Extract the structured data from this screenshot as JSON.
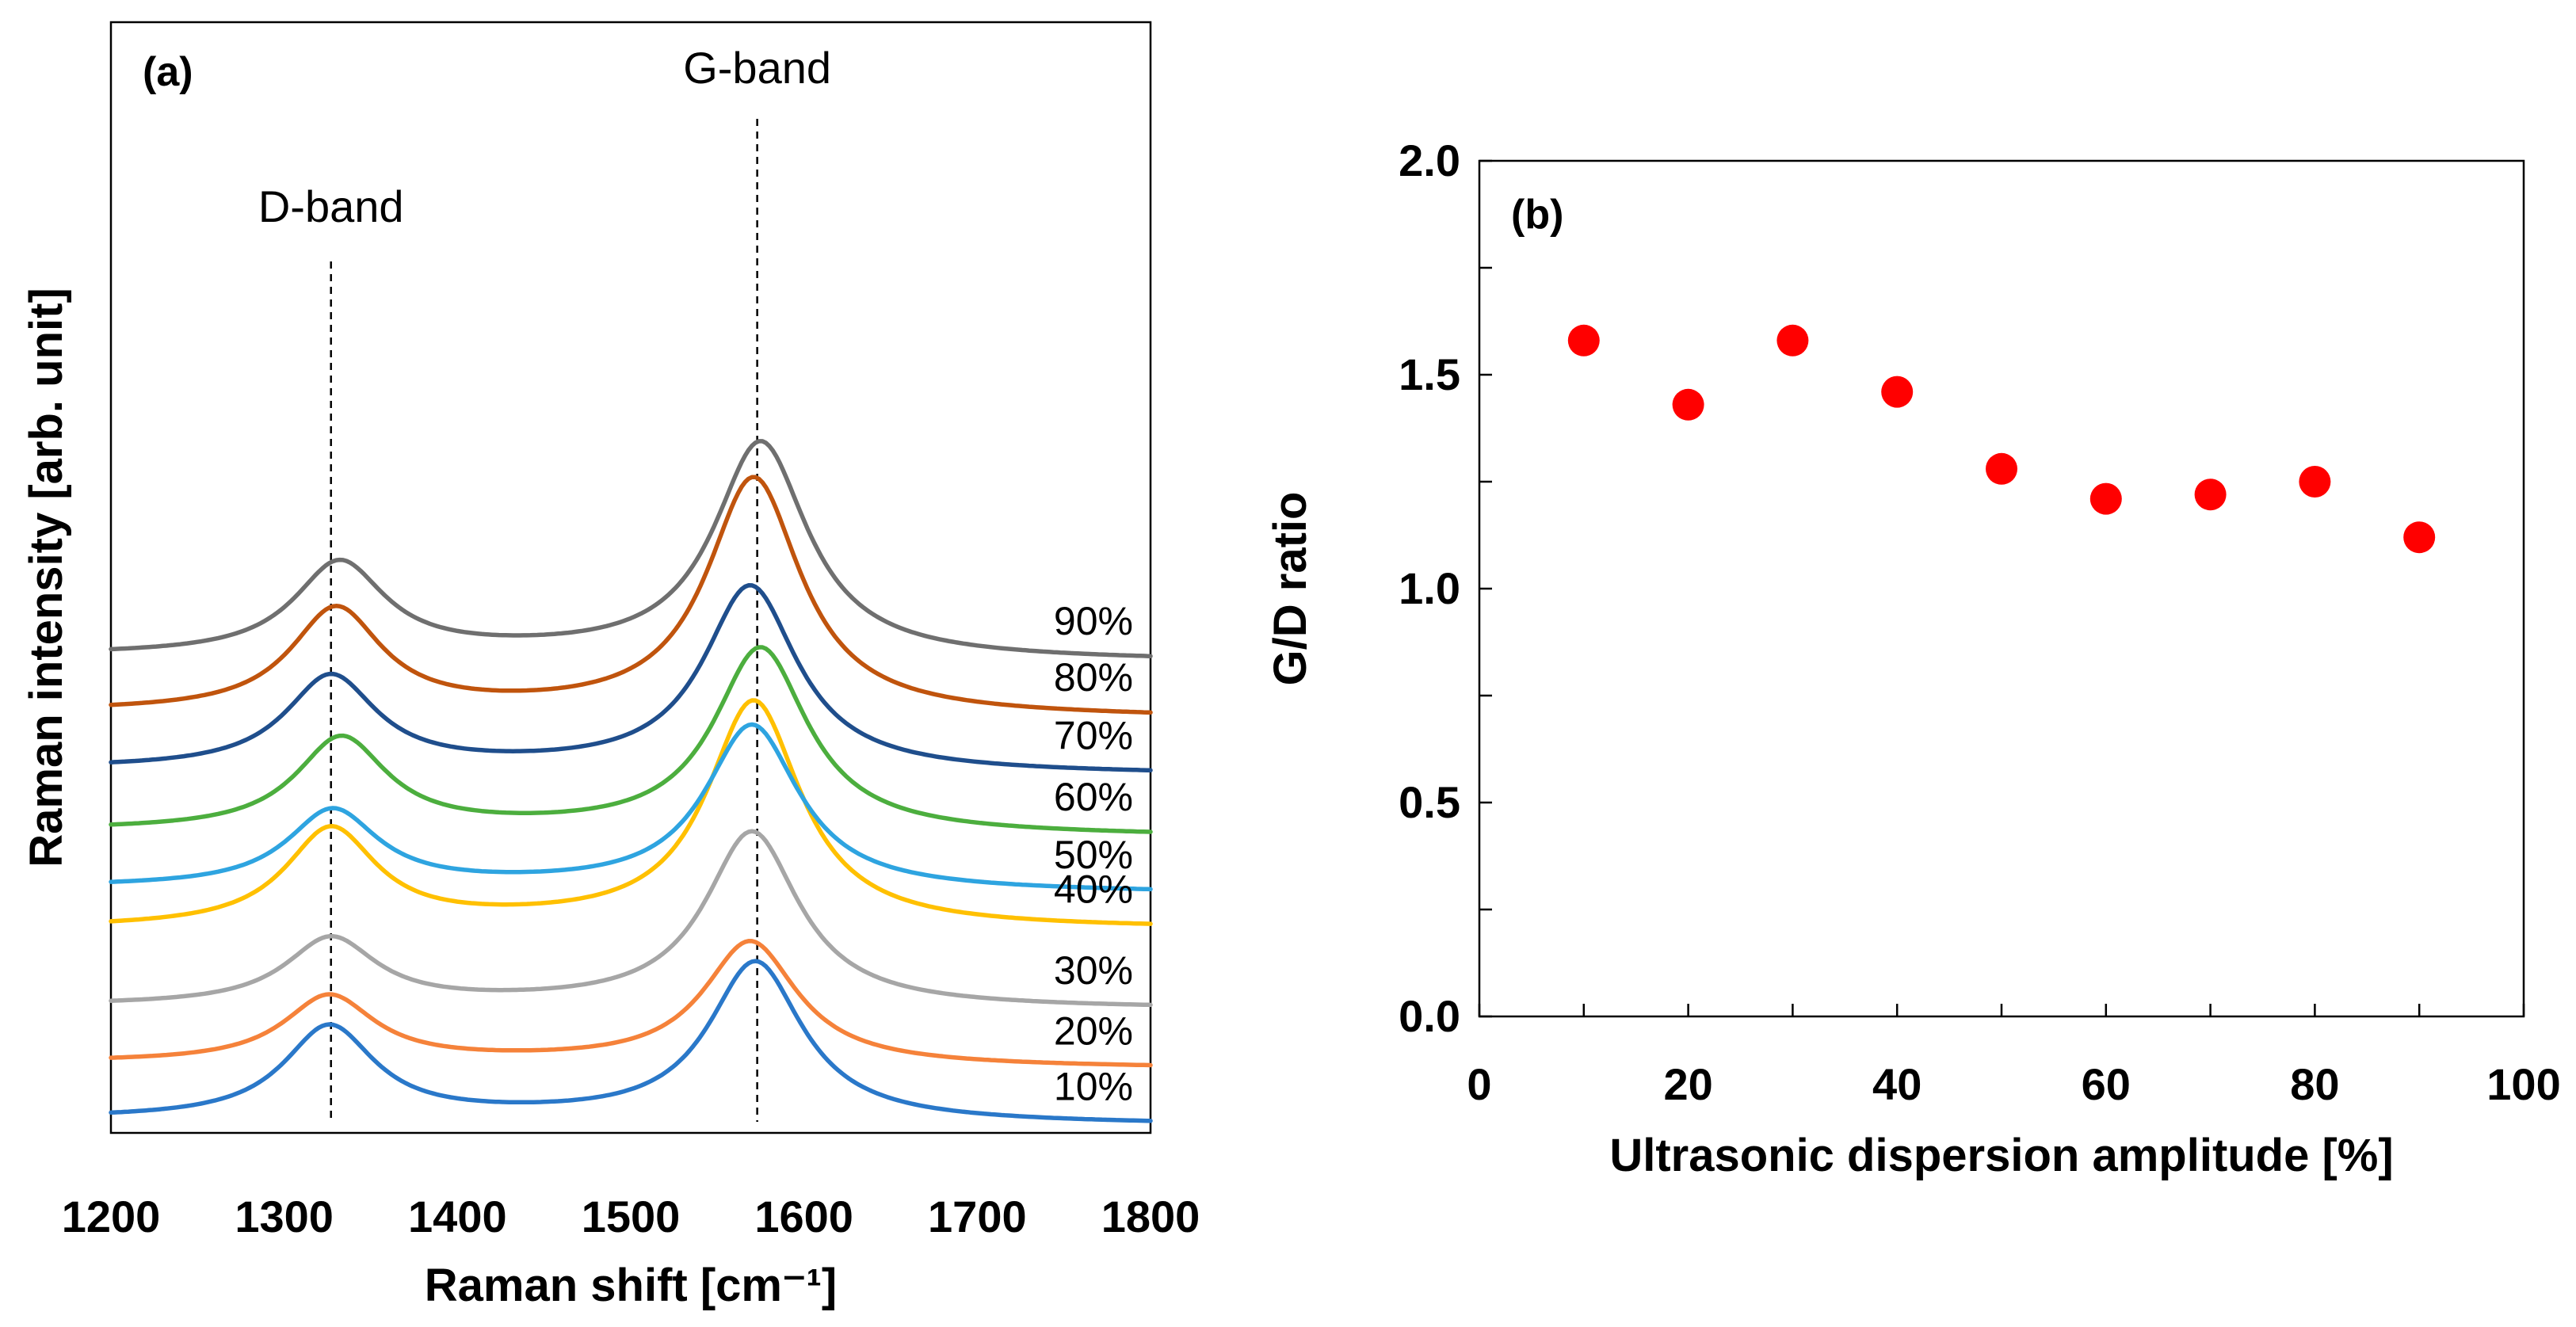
{
  "chart_data": [
    {
      "panel": "(a)",
      "type": "line",
      "title": "",
      "xlabel": "Raman shift [cm⁻¹]",
      "ylabel": "Raman intensity [arb. unit]",
      "xlim": [
        1200,
        1800
      ],
      "xticks": [
        "1200",
        "1300",
        "1400",
        "1500",
        "1600",
        "1700",
        "1800"
      ],
      "annotations": [
        {
          "text": "D-band",
          "x": 1327
        },
        {
          "text": "G-band",
          "x": 1573
        }
      ],
      "series": [
        {
          "name": "10%",
          "color": "#2a78c9",
          "offset": 0.0,
          "d_pos": 1326,
          "d_amp": 1.8,
          "g_pos": 1572,
          "g_amp": 3.1,
          "bg_left": 0.0,
          "bg_right": -0.1,
          "valley": 0.15
        },
        {
          "name": "20%",
          "color": "#f5823a",
          "offset": 1.1,
          "d_pos": 1326,
          "d_amp": 1.3,
          "g_pos": 1569,
          "g_amp": 2.4,
          "bg_left": 0.0,
          "bg_right": -0.1,
          "valley": 0.1
        },
        {
          "name": "30%",
          "color": "#a6a6a6",
          "offset": 2.2,
          "d_pos": 1327,
          "d_amp": 1.3,
          "g_pos": 1570,
          "g_amp": 3.4,
          "bg_left": 0.0,
          "bg_right": -0.05,
          "valley": 0.1
        },
        {
          "name": "40%",
          "color": "#ffc000",
          "offset": 3.7,
          "d_pos": 1327,
          "d_amp": 1.9,
          "g_pos": 1571,
          "g_amp": 4.4,
          "bg_left": 0.0,
          "bg_right": 0.0,
          "valley": 0.2
        },
        {
          "name": "50%",
          "color": "#2ea4e0",
          "offset": 4.5,
          "d_pos": 1328,
          "d_amp": 1.5,
          "g_pos": 1570,
          "g_amp": 3.2,
          "bg_left": 0.0,
          "bg_right": -0.1,
          "valley": 0.1
        },
        {
          "name": "60%",
          "color": "#4cae3e",
          "offset": 5.6,
          "d_pos": 1333,
          "d_amp": 1.8,
          "g_pos": 1575,
          "g_amp": 3.6,
          "bg_left": 0.0,
          "bg_right": -0.1,
          "valley": 0.1
        },
        {
          "name": "70%",
          "color": "#1f4e8c",
          "offset": 6.8,
          "d_pos": 1327,
          "d_amp": 1.8,
          "g_pos": 1569,
          "g_amp": 3.6,
          "bg_left": 0.0,
          "bg_right": -0.1,
          "valley": 0.1
        },
        {
          "name": "80%",
          "color": "#c0540d",
          "offset": 7.9,
          "d_pos": 1330,
          "d_amp": 2.0,
          "g_pos": 1571,
          "g_amp": 4.6,
          "bg_left": 0.0,
          "bg_right": -0.1,
          "valley": 0.1
        },
        {
          "name": "90%",
          "color": "#6f6f6f",
          "offset": 9.0,
          "d_pos": 1332,
          "d_amp": 1.8,
          "g_pos": 1575,
          "g_amp": 4.2,
          "bg_left": 0.0,
          "bg_right": -0.1,
          "valley": 0.15
        }
      ]
    },
    {
      "panel": "(b)",
      "type": "scatter",
      "title": "",
      "xlabel": "Ultrasonic dispersion amplitude [%]",
      "ylabel": "G/D ratio",
      "xlim": [
        0,
        100
      ],
      "ylim": [
        0,
        2
      ],
      "xticks": [
        "0",
        "20",
        "40",
        "60",
        "80",
        "100"
      ],
      "yticks": [
        "0.0",
        "0.5",
        "1.0",
        "1.5",
        "2.0"
      ],
      "marker_color": "#ff0000",
      "x": [
        10,
        20,
        30,
        40,
        50,
        60,
        70,
        80,
        90
      ],
      "y": [
        1.58,
        1.43,
        1.58,
        1.46,
        1.28,
        1.21,
        1.22,
        1.25,
        1.12
      ]
    }
  ]
}
